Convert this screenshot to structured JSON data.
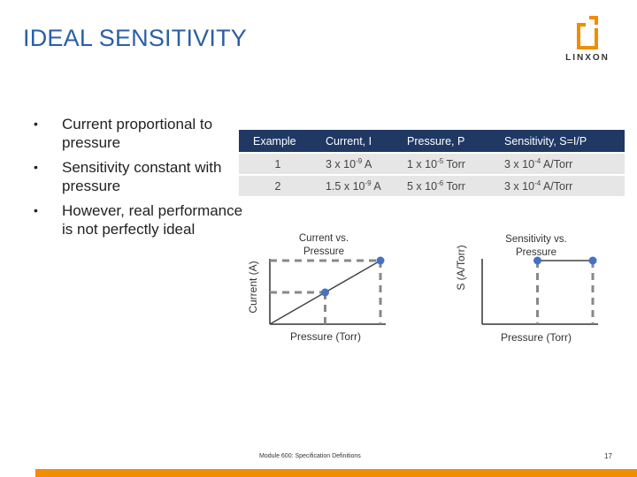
{
  "slide": {
    "title": "IDEAL SENSITIVITY",
    "logo_text": "LINXON",
    "footer": "Module 600: Specification Definitions",
    "page_number": "17",
    "accent_color": "#f28c00",
    "title_color": "#2a5fa8"
  },
  "bullets": [
    "Current proportional to pressure",
    "Sensitivity constant with pressure",
    "However, real performance is not perfectly ideal"
  ],
  "table": {
    "headers": [
      "Example",
      "Current, I",
      "Pressure, P",
      "Sensitivity, S=I/P"
    ],
    "rows": [
      {
        "example": "1",
        "current_base": "3 x 10",
        "current_exp": "-9",
        "current_unit": " A",
        "pressure_base": "1 x 10",
        "pressure_exp": "-5",
        "pressure_unit": " Torr",
        "sens_base": "3 x 10",
        "sens_exp": "-4",
        "sens_unit": " A/Torr"
      },
      {
        "example": "2",
        "current_base": "1.5 x 10",
        "current_exp": "-9",
        "current_unit": " A",
        "pressure_base": "5 x 10",
        "pressure_exp": "-6",
        "pressure_unit": " Torr",
        "sens_base": "3 x 10",
        "sens_exp": "-4",
        "sens_unit": " A/Torr"
      }
    ]
  },
  "chart_data": [
    {
      "type": "line",
      "title": "Current vs. Pressure",
      "title_line1": "Current vs.",
      "title_line2": "Pressure",
      "xlabel": "Pressure (Torr)",
      "ylabel": "Current (A)",
      "x": [
        0,
        0.5,
        1.0
      ],
      "y": [
        0,
        0.5,
        1.0
      ],
      "markers": [
        {
          "x": 0.5,
          "y": 0.5
        },
        {
          "x": 1.0,
          "y": 1.0
        }
      ],
      "grid": false
    },
    {
      "type": "line",
      "title": "Sensitivity vs. Pressure",
      "title_line1": "Sensitivity vs.",
      "title_line2": "Pressure",
      "xlabel": "Pressure (Torr)",
      "ylabel": "S (A/Torr)",
      "x": [
        0.5,
        1.0
      ],
      "y": [
        1.0,
        1.0
      ],
      "markers": [
        {
          "x": 0.5,
          "y": 1.0
        },
        {
          "x": 1.0,
          "y": 1.0
        }
      ],
      "grid": false
    }
  ]
}
